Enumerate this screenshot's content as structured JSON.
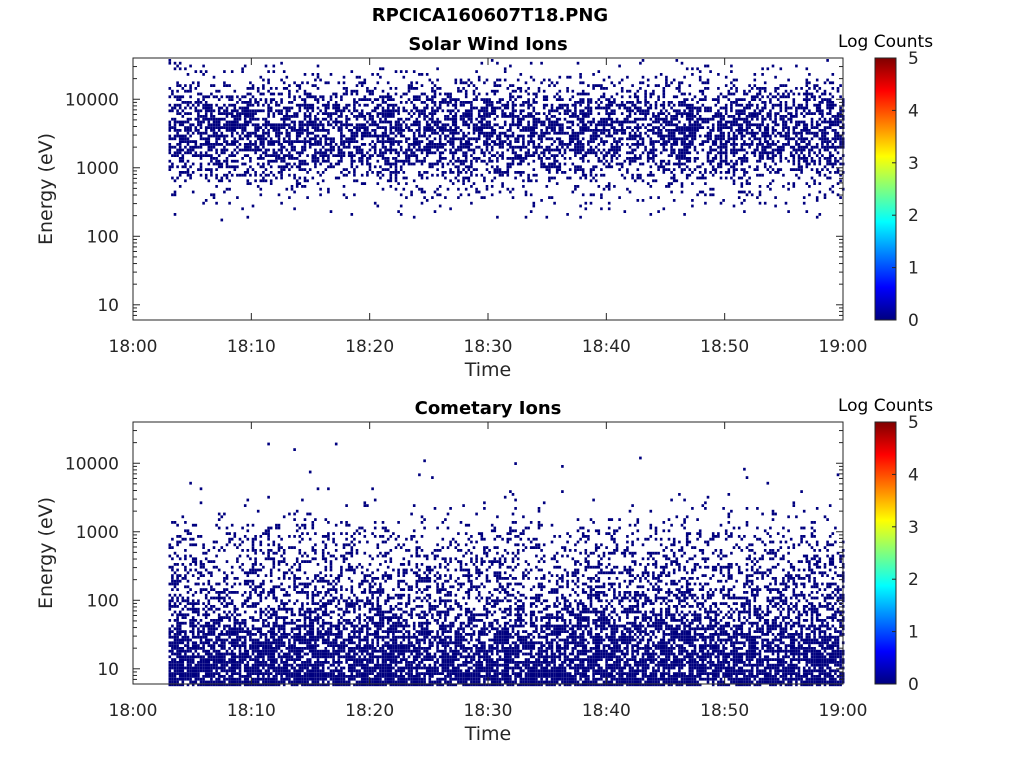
{
  "figure": {
    "title": "RPCICA160607T18.PNG"
  },
  "colorbar": {
    "label": "Log Counts",
    "range": [
      0,
      5
    ],
    "ticks": [
      "0",
      "1",
      "2",
      "3",
      "4",
      "5"
    ],
    "colormap": "jet",
    "colors": [
      "#00007f",
      "#0000ff",
      "#007fff",
      "#00ffff",
      "#7fff7f",
      "#ffff00",
      "#ff7f00",
      "#ff0000",
      "#7f0000"
    ]
  },
  "chart_data": [
    {
      "type": "heatmap",
      "title": "Solar Wind Ions",
      "xlabel": "Time",
      "ylabel": "Energy (eV)",
      "x_range": [
        "18:00",
        "19:00"
      ],
      "x_ticks": [
        "18:00",
        "18:10",
        "18:20",
        "18:30",
        "18:40",
        "18:50",
        "19:00"
      ],
      "y_scale": "log",
      "y_range": [
        6,
        40000
      ],
      "y_ticks": [
        "10",
        "100",
        "1000",
        "10000"
      ],
      "data_start": "18:03",
      "data_end": "19:00",
      "value_level": 0,
      "pattern": "sparse counts concentrated between ~1000 and ~10000 eV, scattered from ~300 to ~40000 eV",
      "density_profile_energy_eV": [
        {
          "energy": 300,
          "density": 0.05
        },
        {
          "energy": 600,
          "density": 0.15
        },
        {
          "energy": 1000,
          "density": 0.35
        },
        {
          "energy": 2000,
          "density": 0.55
        },
        {
          "energy": 4000,
          "density": 0.62
        },
        {
          "energy": 8000,
          "density": 0.5
        },
        {
          "energy": 15000,
          "density": 0.22
        },
        {
          "energy": 25000,
          "density": 0.08
        },
        {
          "energy": 40000,
          "density": 0.02
        }
      ]
    },
    {
      "type": "heatmap",
      "title": "Cometary Ions",
      "xlabel": "Time",
      "ylabel": "Energy (eV)",
      "x_range": [
        "18:00",
        "19:00"
      ],
      "x_ticks": [
        "18:00",
        "18:10",
        "18:20",
        "18:30",
        "18:40",
        "18:50",
        "19:00"
      ],
      "y_scale": "log",
      "y_range": [
        6,
        40000
      ],
      "y_ticks": [
        "10",
        "100",
        "1000",
        "10000"
      ],
      "data_start": "18:03",
      "data_end": "19:00",
      "value_level": 0,
      "pattern": "dense counts at lowest energies (6-60 eV), thinning toward ~2000 eV, rare points up to ~15000 eV",
      "density_profile_energy_eV": [
        {
          "energy": 6,
          "density": 0.85
        },
        {
          "energy": 10,
          "density": 0.8
        },
        {
          "energy": 20,
          "density": 0.72
        },
        {
          "energy": 40,
          "density": 0.6
        },
        {
          "energy": 100,
          "density": 0.42
        },
        {
          "energy": 200,
          "density": 0.35
        },
        {
          "energy": 500,
          "density": 0.25
        },
        {
          "energy": 1000,
          "density": 0.15
        },
        {
          "energy": 2000,
          "density": 0.04
        },
        {
          "energy": 5000,
          "density": 0.005
        },
        {
          "energy": 15000,
          "density": 0.002
        }
      ]
    }
  ]
}
